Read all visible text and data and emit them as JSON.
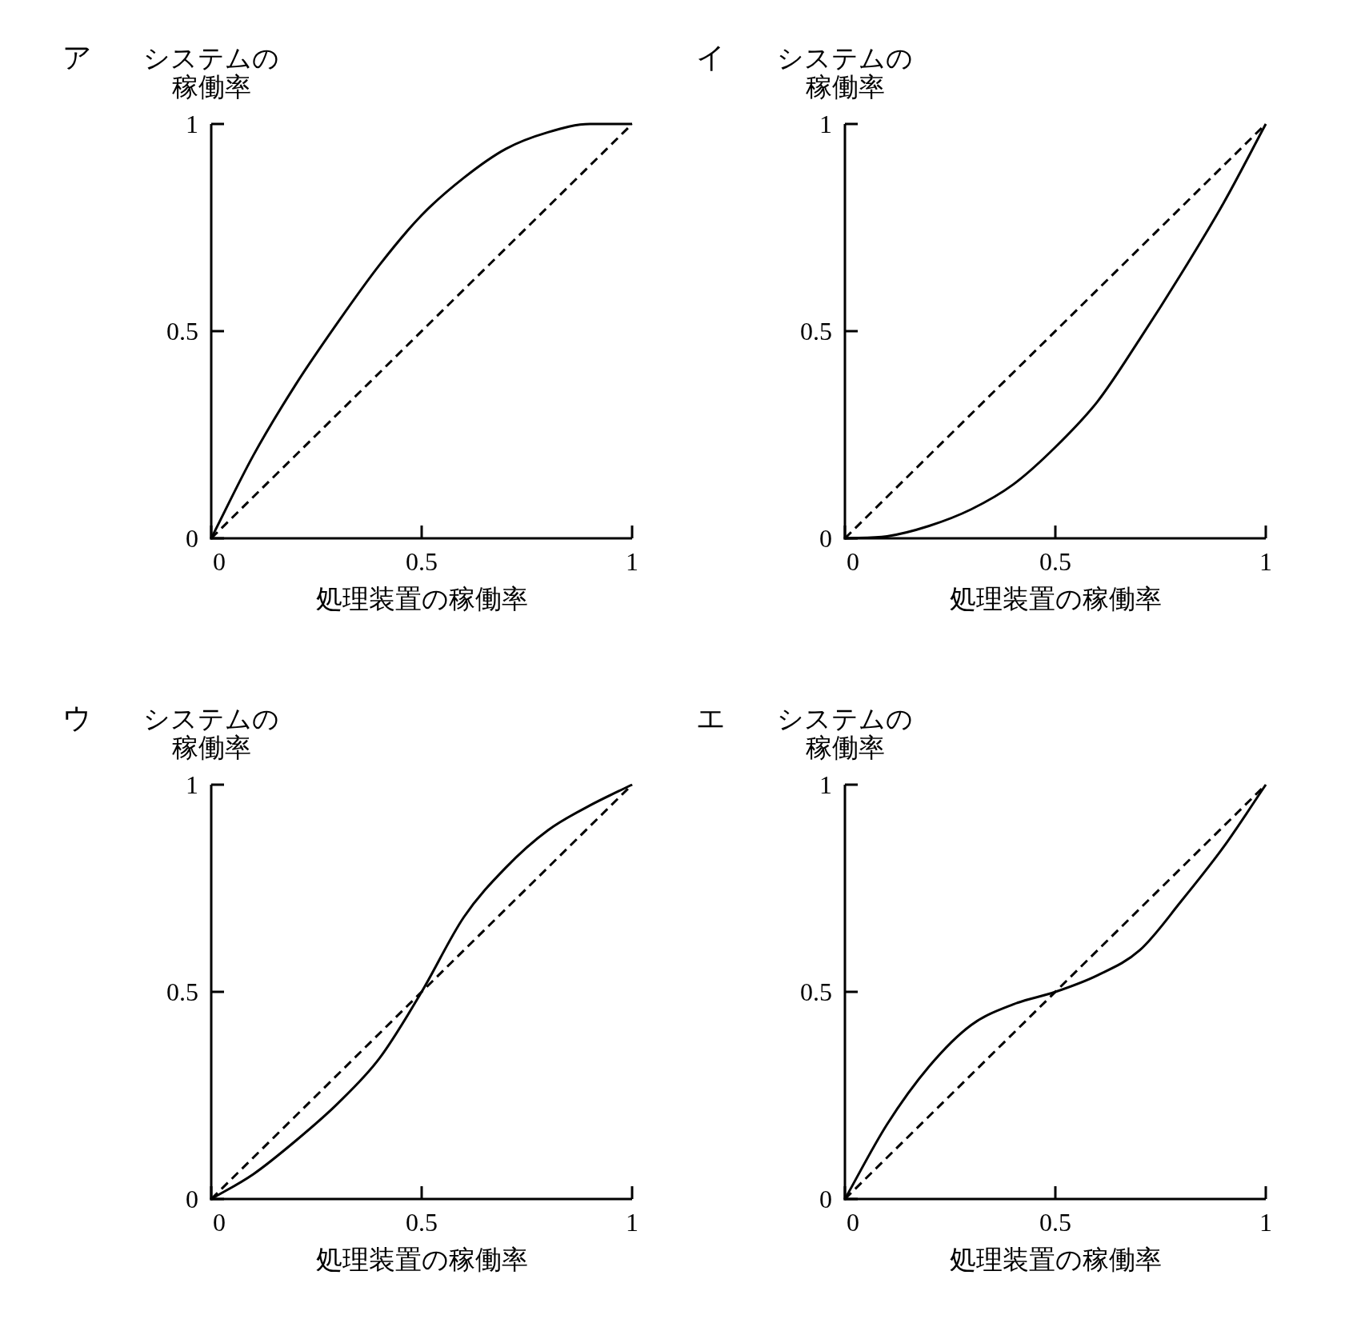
{
  "chart_data": [
    {
      "type": "line",
      "title": "ア",
      "ylabel": "システムの稼働率",
      "xlabel": "処理装置の稼働率",
      "xlim": [
        0,
        1
      ],
      "ylim": [
        0,
        1
      ],
      "xticks": [
        0,
        0.5,
        1
      ],
      "yticks": [
        0,
        0.5,
        1
      ],
      "series": [
        {
          "color": "#000000",
          "line_style": "solid",
          "x": [
            0,
            0.1,
            0.2,
            0.3,
            0.4,
            0.5,
            0.6,
            0.7,
            0.8,
            0.9,
            1
          ],
          "values": [
            0,
            0.2,
            0.37,
            0.52,
            0.66,
            0.78,
            0.87,
            0.94,
            0.98,
            1.0,
            1.0
          ]
        },
        {
          "color": "#000000",
          "line_style": "dashed",
          "x": [
            0,
            1
          ],
          "values": [
            0,
            1
          ]
        }
      ]
    },
    {
      "type": "line",
      "title": "イ",
      "ylabel": "システムの稼働率",
      "xlabel": "処理装置の稼働率",
      "xlim": [
        0,
        1
      ],
      "ylim": [
        0,
        1
      ],
      "xticks": [
        0,
        0.5,
        1
      ],
      "yticks": [
        0,
        0.5,
        1
      ],
      "series": [
        {
          "color": "#000000",
          "line_style": "solid",
          "x": [
            0,
            0.1,
            0.2,
            0.3,
            0.4,
            0.5,
            0.6,
            0.7,
            0.8,
            0.9,
            1
          ],
          "values": [
            0,
            0.005,
            0.03,
            0.07,
            0.13,
            0.22,
            0.33,
            0.48,
            0.64,
            0.81,
            1
          ]
        },
        {
          "color": "#000000",
          "line_style": "dashed",
          "x": [
            0,
            1
          ],
          "values": [
            0,
            1
          ]
        }
      ]
    },
    {
      "type": "line",
      "title": "ウ",
      "ylabel": "システムの稼働率",
      "xlabel": "処理装置の稼働率",
      "xlim": [
        0,
        1
      ],
      "ylim": [
        0,
        1
      ],
      "xticks": [
        0,
        0.5,
        1
      ],
      "yticks": [
        0,
        0.5,
        1
      ],
      "series": [
        {
          "color": "#000000",
          "line_style": "solid",
          "x": [
            0,
            0.1,
            0.2,
            0.3,
            0.4,
            0.5,
            0.6,
            0.7,
            0.8,
            0.9,
            1
          ],
          "values": [
            0,
            0.06,
            0.14,
            0.23,
            0.34,
            0.5,
            0.68,
            0.8,
            0.89,
            0.95,
            1
          ]
        },
        {
          "color": "#000000",
          "line_style": "dashed",
          "x": [
            0,
            1
          ],
          "values": [
            0,
            1
          ]
        }
      ]
    },
    {
      "type": "line",
      "title": "エ",
      "ylabel": "システムの稼働率",
      "xlabel": "処理装置の稼働率",
      "xlim": [
        0,
        1
      ],
      "ylim": [
        0,
        1
      ],
      "xticks": [
        0,
        0.5,
        1
      ],
      "yticks": [
        0,
        0.5,
        1
      ],
      "series": [
        {
          "color": "#000000",
          "line_style": "solid",
          "x": [
            0,
            0.1,
            0.2,
            0.3,
            0.4,
            0.5,
            0.6,
            0.7,
            0.8,
            0.9,
            1
          ],
          "values": [
            0,
            0.18,
            0.32,
            0.42,
            0.47,
            0.5,
            0.54,
            0.6,
            0.72,
            0.85,
            1
          ]
        },
        {
          "color": "#000000",
          "line_style": "dashed",
          "x": [
            0,
            1
          ],
          "values": [
            0,
            1
          ]
        }
      ]
    }
  ]
}
